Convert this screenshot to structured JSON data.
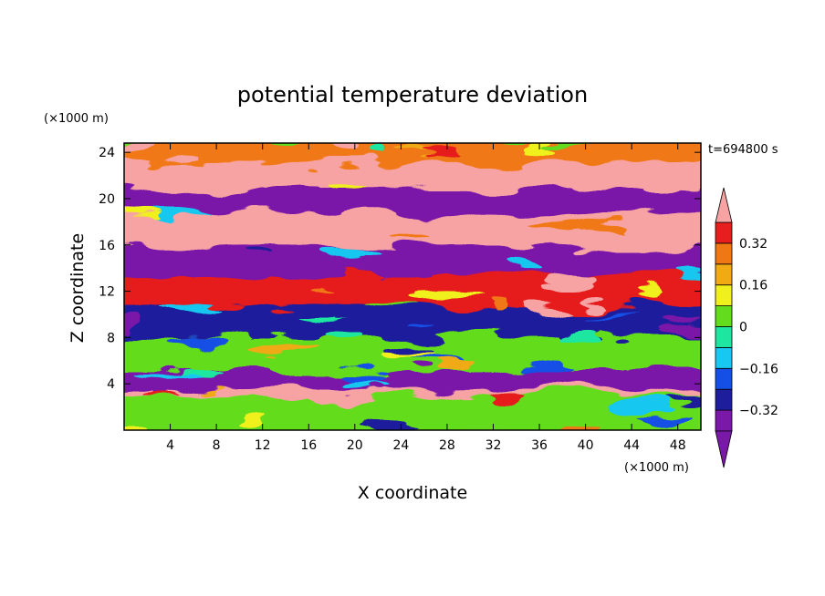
{
  "chart_data": {
    "type": "heatmap",
    "title": "potential temperature deviation",
    "xlabel": "X coordinate",
    "ylabel": "Z coordinate",
    "x_unit": "(×1000 m)",
    "y_unit": "(×1000 m)",
    "time_label": "t=694800 s",
    "xlim": [
      0,
      50
    ],
    "ylim": [
      0,
      24.8
    ],
    "x_ticks": [
      4,
      8,
      12,
      16,
      20,
      24,
      28,
      32,
      36,
      40,
      44,
      48
    ],
    "y_ticks": [
      4,
      8,
      12,
      16,
      20,
      24
    ],
    "x_tick_labels": [
      "4",
      "8",
      "12",
      "16",
      "20",
      "24",
      "28",
      "32",
      "36",
      "40",
      "44",
      "48"
    ],
    "y_tick_labels": [
      "4",
      "8",
      "12",
      "16",
      "20",
      "24"
    ],
    "colorbar": {
      "levels": [
        -0.4,
        -0.32,
        -0.24,
        -0.16,
        -0.08,
        0,
        0.08,
        0.16,
        0.24,
        0.32,
        0.4
      ],
      "colors": [
        "#7a19a8",
        "#1e1e9c",
        "#1450e6",
        "#19c8f0",
        "#1ee6a0",
        "#64dc1e",
        "#f0f01e",
        "#f0aa14",
        "#f07814",
        "#e61e1e",
        "#f7a3a3"
      ],
      "labels": [
        {
          "value": 0.32,
          "text": "0.32"
        },
        {
          "value": 0.16,
          "text": "0.16"
        },
        {
          "value": 0,
          "text": "0"
        },
        {
          "value": -0.16,
          "text": "−0.16"
        },
        {
          "value": -0.32,
          "text": "−0.32"
        }
      ],
      "extend": "both"
    },
    "bands": [
      {
        "z0": 23.0,
        "z1": 24.8,
        "value": 0.3
      },
      {
        "z0": 20.6,
        "z1": 23.0,
        "value": 0.45
      },
      {
        "z0": 18.6,
        "z1": 20.6,
        "value": -0.45
      },
      {
        "z0": 15.6,
        "z1": 18.6,
        "value": 0.45
      },
      {
        "z0": 13.2,
        "z1": 15.6,
        "value": -0.4
      },
      {
        "z0": 10.6,
        "z1": 13.2,
        "value": 0.35
      },
      {
        "z0": 7.8,
        "z1": 10.6,
        "value": -0.3
      },
      {
        "z0": 5.0,
        "z1": 7.8,
        "value": 0.05
      },
      {
        "z0": 3.4,
        "z1": 5.0,
        "value": -0.35
      },
      {
        "z0": 2.9,
        "z1": 3.4,
        "value": 0.45
      },
      {
        "z0": 0.0,
        "z1": 2.9,
        "value": 0.05
      }
    ]
  }
}
